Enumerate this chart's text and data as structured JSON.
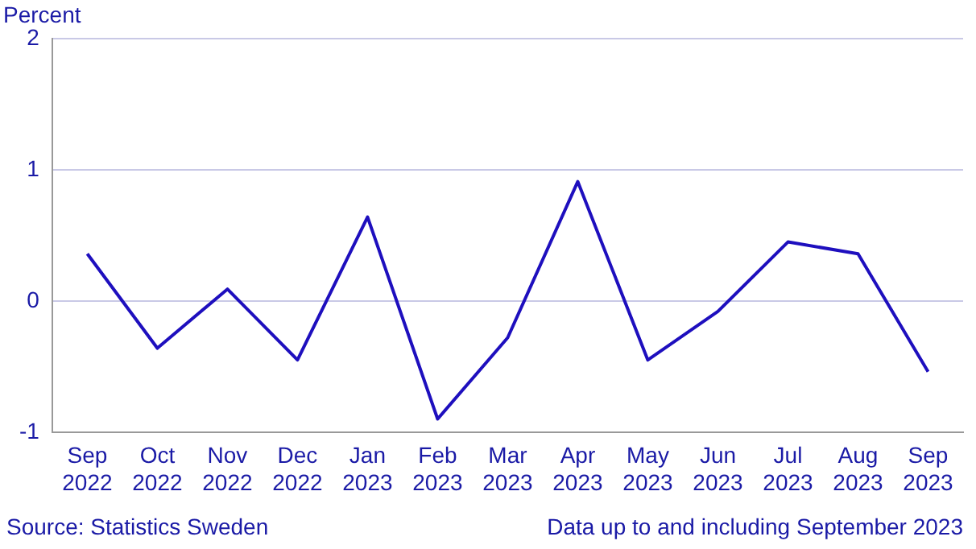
{
  "chart_data": {
    "type": "line",
    "ylabel": "Percent",
    "categories": [
      "Sep 2022",
      "Oct 2022",
      "Nov 2022",
      "Dec 2022",
      "Jan 2023",
      "Feb 2023",
      "Mar 2023",
      "Apr 2023",
      "May 2023",
      "Jun 2023",
      "Jul 2023",
      "Aug 2023",
      "Sep 2023"
    ],
    "series": [
      {
        "color": "#1e0fbe",
        "values": [
          0.36,
          -0.36,
          0.09,
          -0.45,
          0.64,
          -0.9,
          -0.28,
          0.91,
          -0.45,
          -0.08,
          0.45,
          0.36,
          -0.54
        ]
      }
    ],
    "ylim": [
      -1,
      2
    ],
    "yticks": [
      -1,
      0,
      1,
      2
    ],
    "grid": "y",
    "legend": false,
    "marker": "none",
    "line_style": "solid",
    "annotations": [
      "Source: Statistics Sweden",
      "Data up to and including September 2023"
    ]
  }
}
